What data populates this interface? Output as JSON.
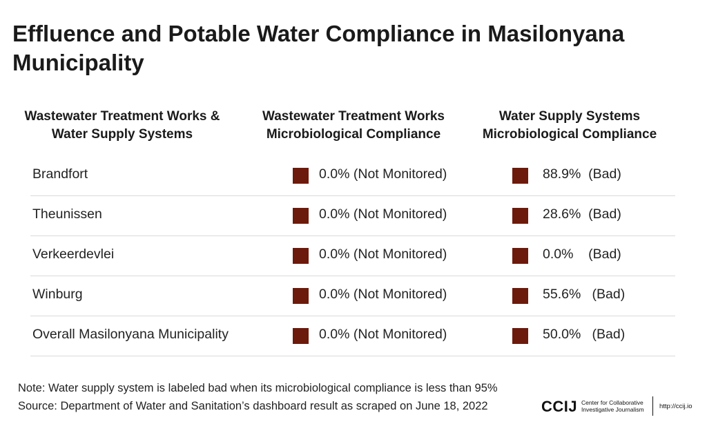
{
  "title": "Effluence and Potable Water Compliance in Masilonyana Municipality",
  "chart_data": {
    "type": "table",
    "title": "Effluence and Potable Water Compliance in Masilonyana Municipality",
    "columns": [
      {
        "line1": "Wastewater Treatment Works &",
        "line2": "Water Supply Systems"
      },
      {
        "line1": "Wastewater Treatment Works",
        "line2": "Microbiological Compliance"
      },
      {
        "line1": "Water Supply Systems",
        "line2": "Microbiological Compliance"
      }
    ],
    "rows": [
      {
        "name": "Brandfort",
        "wwtw_label": "0.0% (Not Monitored)",
        "wwtw_value": 0.0,
        "wss_label": "88.9%  (Bad)",
        "wss_value": 88.9
      },
      {
        "name": "Theunissen",
        "wwtw_label": "0.0% (Not Monitored)",
        "wwtw_value": 0.0,
        "wss_label": "28.6%  (Bad)",
        "wss_value": 28.6
      },
      {
        "name": "Verkeerdevlei",
        "wwtw_label": "0.0% (Not Monitored)",
        "wwtw_value": 0.0,
        "wss_label": "0.0%    (Bad)",
        "wss_value": 0.0
      },
      {
        "name": "Winburg",
        "wwtw_label": "0.0% (Not Monitored)",
        "wwtw_value": 0.0,
        "wss_label": "55.6%   (Bad)",
        "wss_value": 55.6
      },
      {
        "name": "Overall Masilonyana Municipality",
        "wwtw_label": "0.0% (Not Monitored)",
        "wwtw_value": 0.0,
        "wss_label": "50.0%   (Bad)",
        "wss_value": 50.0
      }
    ],
    "status_color": "#6b1a0c"
  },
  "note": "Note: Water supply system is labeled bad when its microbiological compliance is less than 95%",
  "source": "Source: Department of Water and Sanitation’s dashboard result as scraped on June 18, 2022",
  "logo": {
    "mark": "CCIJ",
    "org_line1": "Center for Collaborative",
    "org_line2": "Investigative Journalism",
    "url": "http://ccij.io"
  }
}
